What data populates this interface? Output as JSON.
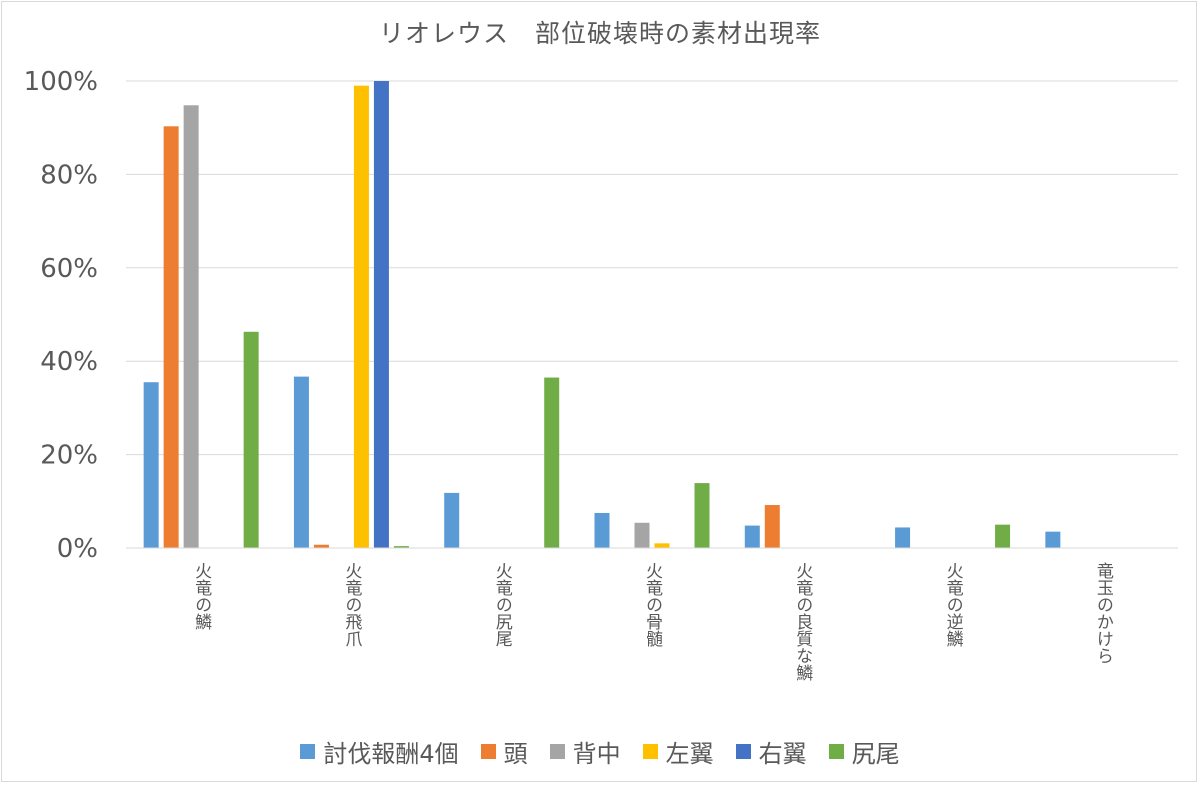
{
  "chart_data": {
    "type": "bar",
    "title": "リオレウス　部位破壊時の素材出現率",
    "xlabel": "",
    "ylabel": "",
    "ylim": [
      0,
      100
    ],
    "yticks": [
      0,
      20,
      40,
      60,
      80,
      100
    ],
    "ytick_labels": [
      "0%",
      "20%",
      "40%",
      "60%",
      "80%",
      "100%"
    ],
    "grid": true,
    "legend_position": "bottom",
    "categories": [
      "火竜の鱗",
      "火竜の飛爪",
      "火竜の尻尾",
      "火竜の骨髄",
      "火竜の良質な鱗",
      "火竜の逆鱗",
      "竜玉のかけら"
    ],
    "series": [
      {
        "name": "討伐報酬4個",
        "color": "#5b9bd5",
        "values": [
          35.5,
          36.7,
          11.8,
          7.5,
          4.8,
          4.4,
          3.5
        ]
      },
      {
        "name": "頭",
        "color": "#ed7d31",
        "values": [
          90.3,
          0.7,
          0,
          0,
          9.2,
          0,
          0
        ]
      },
      {
        "name": "背中",
        "color": "#a5a5a5",
        "values": [
          94.8,
          0,
          0,
          5.4,
          0,
          0,
          0
        ]
      },
      {
        "name": "左翼",
        "color": "#ffc000",
        "values": [
          0,
          99,
          0,
          1,
          0,
          0,
          0
        ]
      },
      {
        "name": "右翼",
        "color": "#4472c4",
        "values": [
          0,
          100,
          0,
          0,
          0,
          0,
          0
        ]
      },
      {
        "name": "尻尾",
        "color": "#70ad47",
        "values": [
          46.3,
          0.4,
          36.5,
          13.9,
          0,
          5,
          0
        ]
      }
    ]
  }
}
